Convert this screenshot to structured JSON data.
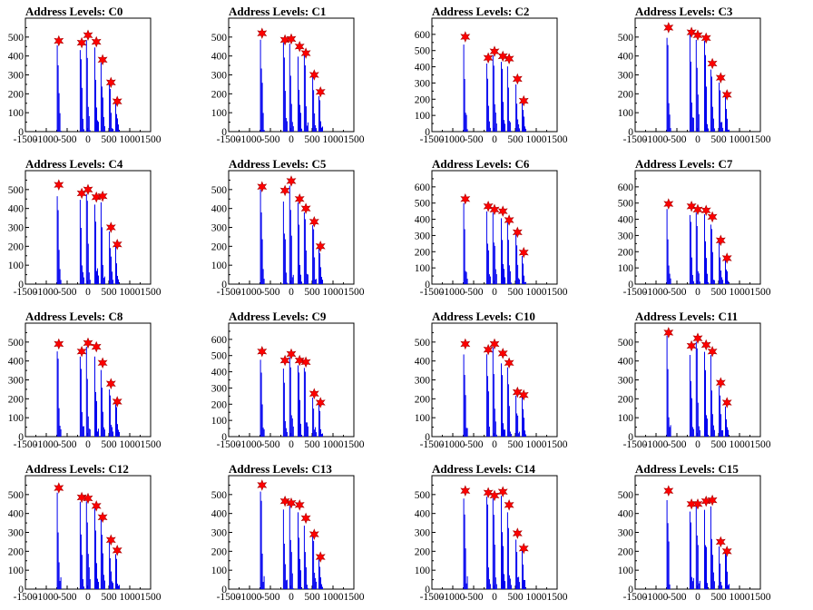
{
  "chart_data": [
    {
      "type": "bar",
      "title": "Address Levels: C0",
      "xlim": [
        -1500,
        1500
      ],
      "yticks": [
        0,
        100,
        200,
        300,
        400,
        500
      ],
      "xticks": [
        -1500,
        -1000,
        -500,
        0,
        500,
        1000,
        1500
      ],
      "peaks": [
        [
          -700,
          480
        ],
        [
          -150,
          470
        ],
        [
          0,
          510
        ],
        [
          200,
          475
        ],
        [
          350,
          380
        ],
        [
          550,
          260
        ],
        [
          700,
          160
        ]
      ]
    },
    {
      "type": "bar",
      "title": "Address Levels: C1",
      "xlim": [
        -1500,
        1500
      ],
      "yticks": [
        0,
        100,
        200,
        300,
        400,
        500
      ],
      "xticks": [
        -1500,
        -1000,
        -500,
        0,
        500,
        1000,
        1500
      ],
      "peaks": [
        [
          -700,
          520
        ],
        [
          -150,
          485
        ],
        [
          0,
          490
        ],
        [
          200,
          450
        ],
        [
          350,
          415
        ],
        [
          550,
          300
        ],
        [
          700,
          210
        ]
      ]
    },
    {
      "type": "bar",
      "title": "Address Levels: C2",
      "xlim": [
        -1500,
        1500
      ],
      "yticks": [
        0,
        100,
        200,
        300,
        400,
        500,
        600
      ],
      "xticks": [
        -1500,
        -1000,
        -500,
        0,
        500,
        1000,
        1500
      ],
      "peaks": [
        [
          -700,
          585
        ],
        [
          -150,
          455
        ],
        [
          0,
          495
        ],
        [
          200,
          465
        ],
        [
          350,
          450
        ],
        [
          550,
          325
        ],
        [
          700,
          190
        ]
      ]
    },
    {
      "type": "bar",
      "title": "Address Levels: C3",
      "xlim": [
        -1500,
        1500
      ],
      "yticks": [
        0,
        100,
        200,
        300,
        400,
        500
      ],
      "xticks": [
        -1500,
        -1000,
        -500,
        0,
        500,
        1000,
        1500
      ],
      "peaks": [
        [
          -700,
          550
        ],
        [
          -150,
          525
        ],
        [
          0,
          510
        ],
        [
          200,
          495
        ],
        [
          350,
          360
        ],
        [
          550,
          285
        ],
        [
          700,
          195
        ]
      ]
    },
    {
      "type": "bar",
      "title": "Address Levels: C4",
      "xlim": [
        -1500,
        1500
      ],
      "yticks": [
        0,
        100,
        200,
        300,
        400,
        500
      ],
      "xticks": [
        -1500,
        -1000,
        -500,
        0,
        500,
        1000,
        1500
      ],
      "peaks": [
        [
          -700,
          525
        ],
        [
          -150,
          480
        ],
        [
          0,
          500
        ],
        [
          200,
          460
        ],
        [
          350,
          465
        ],
        [
          550,
          300
        ],
        [
          700,
          210
        ]
      ]
    },
    {
      "type": "bar",
      "title": "Address Levels: C5",
      "xlim": [
        -1500,
        1500
      ],
      "yticks": [
        0,
        100,
        200,
        300,
        400,
        500
      ],
      "xticks": [
        -1500,
        -1000,
        -500,
        0,
        500,
        1000,
        1500
      ],
      "peaks": [
        [
          -700,
          515
        ],
        [
          -150,
          495
        ],
        [
          0,
          545
        ],
        [
          200,
          450
        ],
        [
          350,
          400
        ],
        [
          550,
          330
        ],
        [
          700,
          200
        ]
      ]
    },
    {
      "type": "bar",
      "title": "Address Levels: C6",
      "xlim": [
        -1500,
        1500
      ],
      "yticks": [
        0,
        100,
        200,
        300,
        400,
        500,
        600
      ],
      "xticks": [
        -1500,
        -1000,
        -500,
        0,
        500,
        1000,
        1500
      ],
      "peaks": [
        [
          -700,
          525
        ],
        [
          -150,
          480
        ],
        [
          0,
          460
        ],
        [
          200,
          450
        ],
        [
          350,
          395
        ],
        [
          550,
          320
        ],
        [
          700,
          195
        ]
      ]
    },
    {
      "type": "bar",
      "title": "Address Levels: C7",
      "xlim": [
        -1500,
        1500
      ],
      "yticks": [
        0,
        100,
        200,
        300,
        400,
        500,
        600
      ],
      "xticks": [
        -1500,
        -1000,
        -500,
        0,
        500,
        1000,
        1500
      ],
      "peaks": [
        [
          -700,
          495
        ],
        [
          -150,
          480
        ],
        [
          0,
          460
        ],
        [
          200,
          455
        ],
        [
          350,
          415
        ],
        [
          550,
          270
        ],
        [
          700,
          160
        ]
      ]
    },
    {
      "type": "bar",
      "title": "Address Levels: C8",
      "xlim": [
        -1500,
        1500
      ],
      "yticks": [
        0,
        100,
        200,
        300,
        400,
        500
      ],
      "xticks": [
        -1500,
        -1000,
        -500,
        0,
        500,
        1000,
        1500
      ],
      "peaks": [
        [
          -700,
          490
        ],
        [
          -150,
          450
        ],
        [
          0,
          495
        ],
        [
          200,
          475
        ],
        [
          350,
          390
        ],
        [
          550,
          280
        ],
        [
          700,
          185
        ]
      ]
    },
    {
      "type": "bar",
      "title": "Address Levels: C9",
      "xlim": [
        -1500,
        1500
      ],
      "yticks": [
        0,
        100,
        200,
        300,
        400,
        500,
        600
      ],
      "xticks": [
        -1500,
        -1000,
        -500,
        0,
        500,
        1000,
        1500
      ],
      "peaks": [
        [
          -700,
          525
        ],
        [
          -150,
          470
        ],
        [
          0,
          510
        ],
        [
          200,
          470
        ],
        [
          350,
          460
        ],
        [
          550,
          265
        ],
        [
          700,
          210
        ]
      ]
    },
    {
      "type": "bar",
      "title": "Address Levels: C10",
      "xlim": [
        -1500,
        1500
      ],
      "yticks": [
        0,
        100,
        200,
        300,
        400,
        500
      ],
      "xticks": [
        -1500,
        -1000,
        -500,
        0,
        500,
        1000,
        1500
      ],
      "peaks": [
        [
          -700,
          490
        ],
        [
          -150,
          460
        ],
        [
          0,
          490
        ],
        [
          200,
          440
        ],
        [
          350,
          390
        ],
        [
          550,
          235
        ],
        [
          700,
          220
        ]
      ]
    },
    {
      "type": "bar",
      "title": "Address Levels: C11",
      "xlim": [
        -1500,
        1500
      ],
      "yticks": [
        0,
        100,
        200,
        300,
        400,
        500
      ],
      "xticks": [
        -1500,
        -1000,
        -500,
        0,
        500,
        1000,
        1500
      ],
      "peaks": [
        [
          -700,
          550
        ],
        [
          -150,
          480
        ],
        [
          0,
          520
        ],
        [
          200,
          485
        ],
        [
          350,
          450
        ],
        [
          550,
          285
        ],
        [
          700,
          180
        ]
      ]
    },
    {
      "type": "bar",
      "title": "Address Levels: C12",
      "xlim": [
        -1500,
        1500
      ],
      "yticks": [
        0,
        100,
        200,
        300,
        400,
        500
      ],
      "xticks": [
        -1500,
        -1000,
        -500,
        0,
        500,
        1000,
        1500
      ],
      "peaks": [
        [
          -700,
          535
        ],
        [
          -150,
          485
        ],
        [
          0,
          480
        ],
        [
          200,
          440
        ],
        [
          350,
          380
        ],
        [
          550,
          260
        ],
        [
          700,
          205
        ]
      ]
    },
    {
      "type": "bar",
      "title": "Address Levels: C13",
      "xlim": [
        -1500,
        1500
      ],
      "yticks": [
        0,
        100,
        200,
        300,
        400,
        500
      ],
      "xticks": [
        -1500,
        -1000,
        -500,
        0,
        500,
        1000,
        1500
      ],
      "peaks": [
        [
          -700,
          550
        ],
        [
          -150,
          465
        ],
        [
          0,
          455
        ],
        [
          200,
          445
        ],
        [
          350,
          375
        ],
        [
          550,
          290
        ],
        [
          700,
          170
        ]
      ]
    },
    {
      "type": "bar",
      "title": "Address Levels: C14",
      "xlim": [
        -1500,
        1500
      ],
      "yticks": [
        0,
        100,
        200,
        300,
        400,
        500
      ],
      "xticks": [
        -1500,
        -1000,
        -500,
        0,
        500,
        1000,
        1500
      ],
      "peaks": [
        [
          -700,
          520
        ],
        [
          -150,
          510
        ],
        [
          0,
          495
        ],
        [
          200,
          515
        ],
        [
          350,
          445
        ],
        [
          550,
          295
        ],
        [
          700,
          215
        ]
      ]
    },
    {
      "type": "bar",
      "title": "Address Levels: C15",
      "xlim": [
        -1500,
        1500
      ],
      "yticks": [
        0,
        100,
        200,
        300,
        400,
        500
      ],
      "xticks": [
        -1500,
        -1000,
        -500,
        0,
        500,
        1000,
        1500
      ],
      "peaks": [
        [
          -700,
          520
        ],
        [
          -150,
          450
        ],
        [
          0,
          450
        ],
        [
          200,
          465
        ],
        [
          350,
          470
        ],
        [
          550,
          250
        ],
        [
          700,
          200
        ]
      ]
    }
  ],
  "colors": {
    "bar": "#0000ee",
    "marker": "#ff0000",
    "marker_edge": "#aa0000",
    "axis": "#000000"
  },
  "marker_icon": "star-marker-icon"
}
